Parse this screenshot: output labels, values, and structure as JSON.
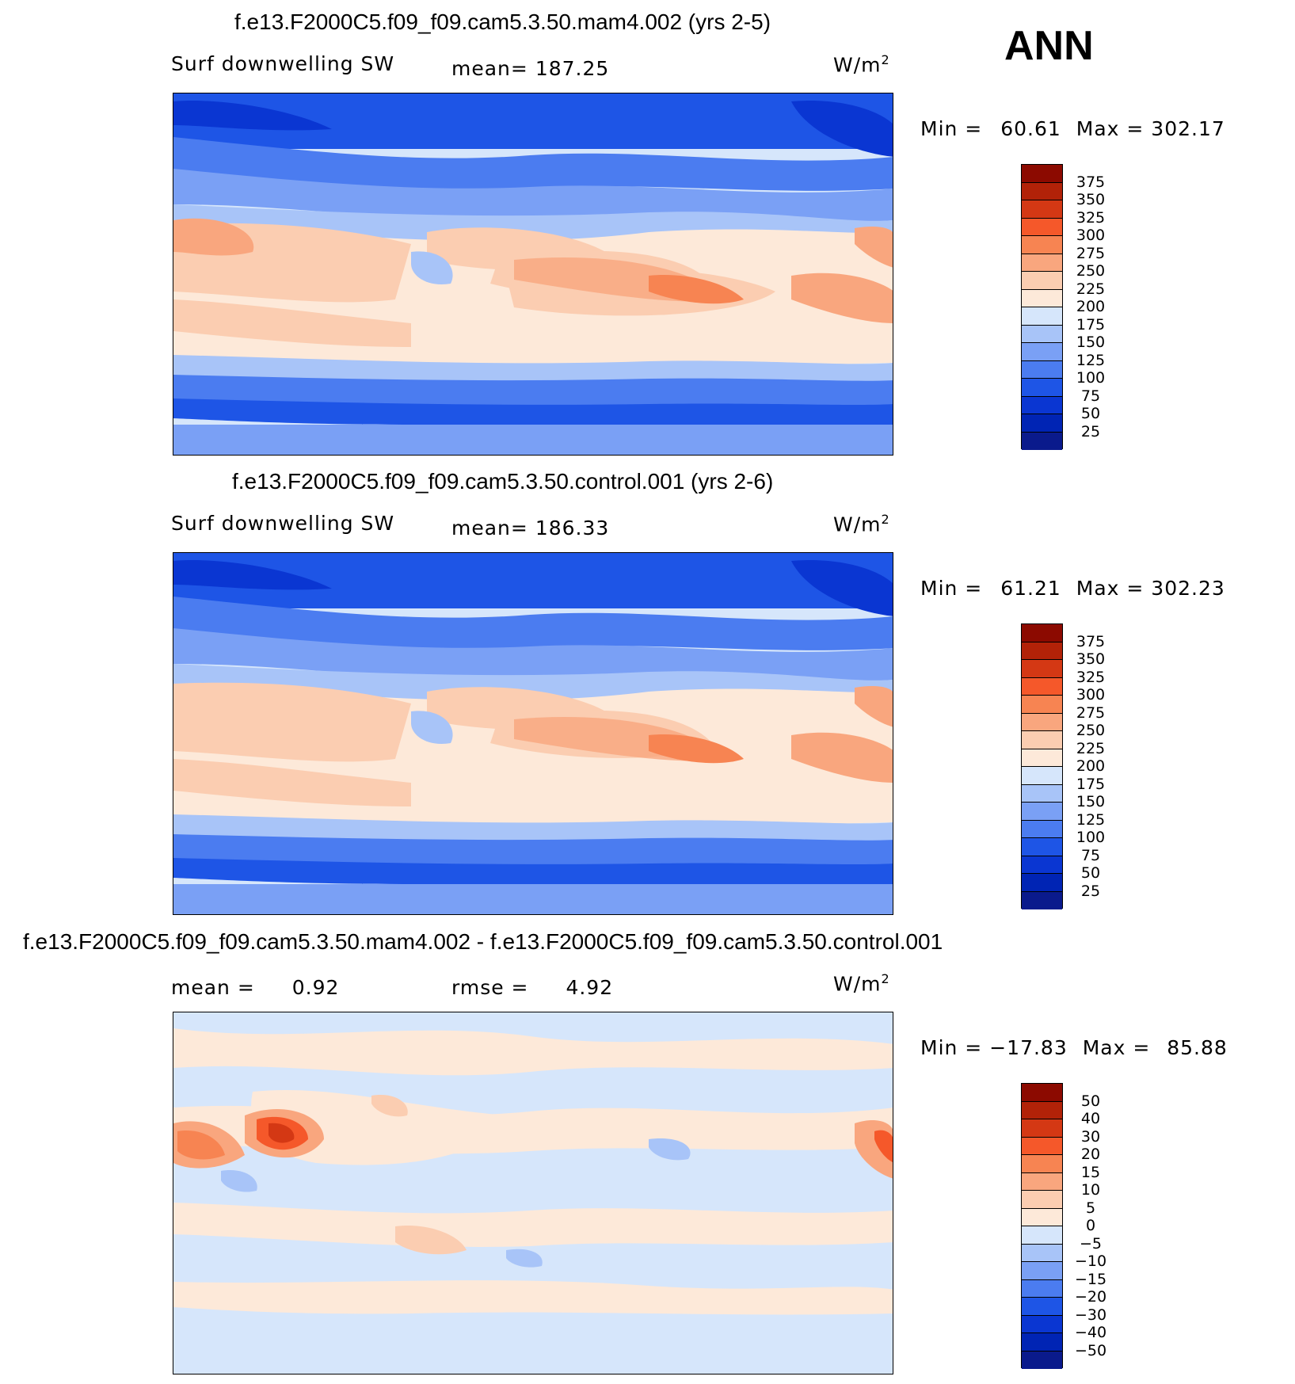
{
  "season": "ANN",
  "unit_prefix": "W/m",
  "unit_exp": "2",
  "colors": {
    "abs_scale": [
      "#0a1a8c",
      "#0024b4",
      "#0a36d2",
      "#1e55e6",
      "#4b7cf0",
      "#7aa0f5",
      "#a8c4f8",
      "#d6e6fb",
      "#fde9d9",
      "#fbcdb1",
      "#f9a67e",
      "#f78452",
      "#f5582a",
      "#d43814",
      "#b22208",
      "#8c0a00"
    ],
    "diff_scale": [
      "#0a1a8c",
      "#0024b4",
      "#0a36d2",
      "#1e55e6",
      "#4b7cf0",
      "#7aa0f5",
      "#a8c4f8",
      "#d6e6fb",
      "#fde9d9",
      "#fbcdb1",
      "#f9a67e",
      "#f78452",
      "#f5582a",
      "#d43814",
      "#b22208",
      "#8c0a00"
    ]
  },
  "panels": [
    {
      "title": "f.e13.F2000C5.f09_f09.cam5.3.50.mam4.002 (yrs 2-5)",
      "variable": "Surf downwelling SW",
      "mean_label": "mean=",
      "mean_value": "187.25",
      "min_label": "Min =",
      "min_value": "60.61",
      "max_label": "Max =",
      "max_value": "302.17",
      "colorbar_labels": [
        "375",
        "350",
        "325",
        "300",
        "275",
        "250",
        "225",
        "200",
        "175",
        "150",
        "125",
        "100",
        "75",
        "50",
        "25"
      ]
    },
    {
      "title": "f.e13.F2000C5.f09_f09.cam5.3.50.control.001 (yrs 2-6)",
      "variable": "Surf downwelling SW",
      "mean_label": "mean=",
      "mean_value": "186.33",
      "min_label": "Min =",
      "min_value": "61.21",
      "max_label": "Max =",
      "max_value": "302.23",
      "colorbar_labels": [
        "375",
        "350",
        "325",
        "300",
        "275",
        "250",
        "225",
        "200",
        "175",
        "150",
        "125",
        "100",
        "75",
        "50",
        "25"
      ]
    },
    {
      "title": "f.e13.F2000C5.f09_f09.cam5.3.50.mam4.002 - f.e13.F2000C5.f09_f09.cam5.3.50.control.001",
      "mean_label": "mean =",
      "mean_value": "0.92",
      "rmse_label": "rmse =",
      "rmse_value": "4.92",
      "min_label": "Min =",
      "min_value": "−17.83",
      "max_label": "Max =",
      "max_value": "85.88",
      "colorbar_labels": [
        "50",
        "40",
        "30",
        "20",
        "15",
        "10",
        "5",
        "0",
        "−5",
        "−10",
        "−15",
        "−20",
        "−30",
        "−40",
        "−50"
      ]
    }
  ]
}
